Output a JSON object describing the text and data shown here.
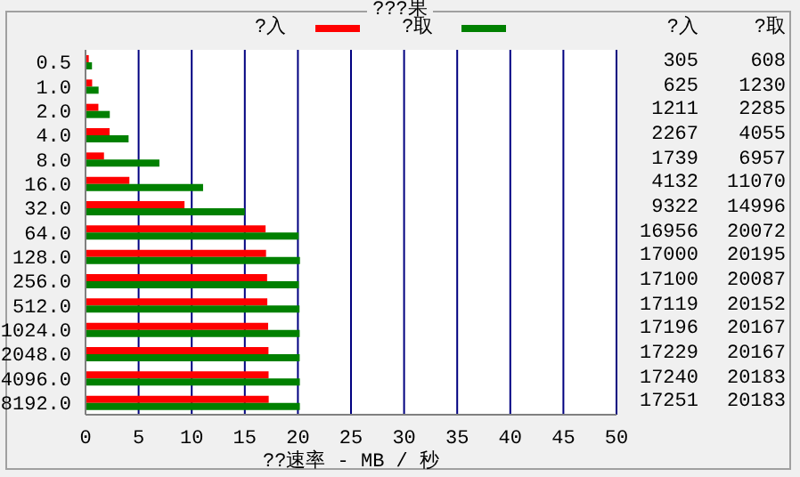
{
  "chart_data": {
    "type": "bar",
    "orientation": "horizontal",
    "title": "???果",
    "xlabel": "??速率 - MB / 秒",
    "categories": [
      "0.5",
      "1.0",
      "2.0",
      "4.0",
      "8.0",
      "16.0",
      "32.0",
      "64.0",
      "128.0",
      "256.0",
      "512.0",
      "1024.0",
      "2048.0",
      "4096.0",
      "8192.0"
    ],
    "series": [
      {
        "name": "?入",
        "color": "#ff0000",
        "values": [
          0.305,
          0.625,
          1.211,
          2.267,
          1.739,
          4.132,
          9.322,
          16.956,
          17.0,
          17.1,
          17.119,
          17.196,
          17.229,
          17.24,
          17.251
        ]
      },
      {
        "name": "?取",
        "color": "#008000",
        "values": [
          0.608,
          1.23,
          2.285,
          4.055,
          6.957,
          11.07,
          14.996,
          20.072,
          20.195,
          20.087,
          20.152,
          20.167,
          20.167,
          20.183,
          20.183
        ]
      }
    ],
    "annotations": [
      "305",
      "625",
      "1211",
      "2267",
      "1739",
      "4132",
      "9322",
      "16956",
      "17000",
      "17100",
      "17119",
      "17196",
      "17229",
      "17240",
      "17251",
      "608",
      "1230",
      "2285",
      "4055",
      "6957",
      "11070",
      "14996",
      "20072",
      "20195",
      "20087",
      "20152",
      "20167",
      "20167",
      "20183",
      "20183"
    ],
    "xlim": [
      0,
      50
    ],
    "xticks": [
      0,
      5,
      10,
      15,
      20,
      25,
      30,
      35,
      40,
      45,
      50
    ],
    "grid": "x",
    "legend": "top"
  }
}
